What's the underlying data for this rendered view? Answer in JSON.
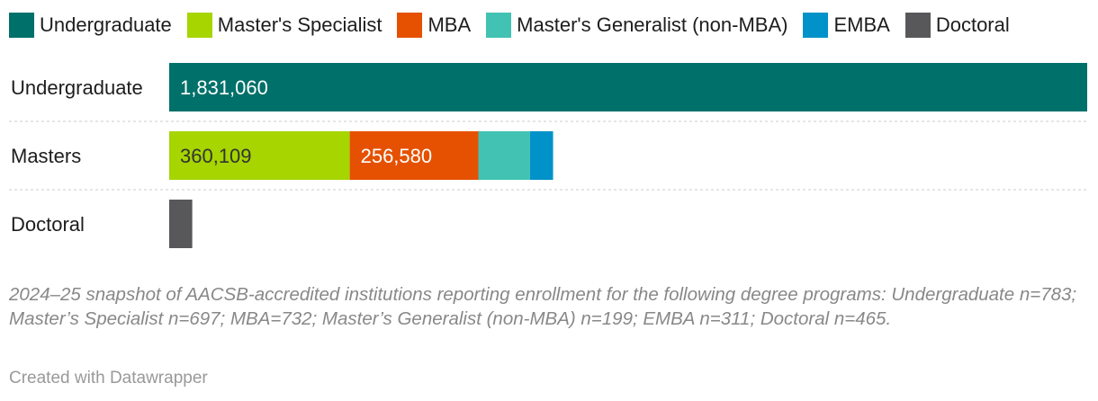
{
  "chart_data": {
    "type": "bar",
    "orientation": "horizontal",
    "stacked": true,
    "legend_position": "top",
    "grid": false,
    "categories": [
      "Undergraduate",
      "Masters",
      "Doctoral"
    ],
    "xlim": [
      0,
      1831060
    ],
    "series": [
      {
        "name": "Undergraduate",
        "color": "#00706a",
        "values": [
          1831060,
          0,
          0
        ],
        "labels": [
          "1,831,060",
          "",
          ""
        ],
        "label_color": "#ffffff"
      },
      {
        "name": "Master's Specialist",
        "color": "#a6d500",
        "values": [
          0,
          360109,
          0
        ],
        "labels": [
          "",
          "360,109",
          ""
        ],
        "label_color": "#333333"
      },
      {
        "name": "MBA",
        "color": "#e55100",
        "values": [
          0,
          256580,
          0
        ],
        "labels": [
          "",
          "256,580",
          ""
        ],
        "label_color": "#ffffff"
      },
      {
        "name": "Master's Generalist (non-MBA)",
        "color": "#41c2b2",
        "values": [
          0,
          103000,
          0
        ],
        "labels": [
          "",
          "",
          ""
        ],
        "label_color": "#333333"
      },
      {
        "name": "EMBA",
        "color": "#0092c8",
        "values": [
          0,
          46000,
          0
        ],
        "labels": [
          "",
          "",
          ""
        ],
        "label_color": "#ffffff"
      },
      {
        "name": "Doctoral",
        "color": "#58585b",
        "values": [
          0,
          0,
          46000
        ],
        "labels": [
          "",
          "",
          ""
        ],
        "label_color": "#ffffff"
      }
    ]
  },
  "notes": "2024–25 snapshot of AACSB-accredited institutions reporting enrollment for the following degree programs: Undergraduate n=783; Master’s Specialist n=697; MBA=732; Master’s Generalist (non-MBA) n=199; EMBA n=311; Doctoral n=465.",
  "credit": "Created with Datawrapper"
}
